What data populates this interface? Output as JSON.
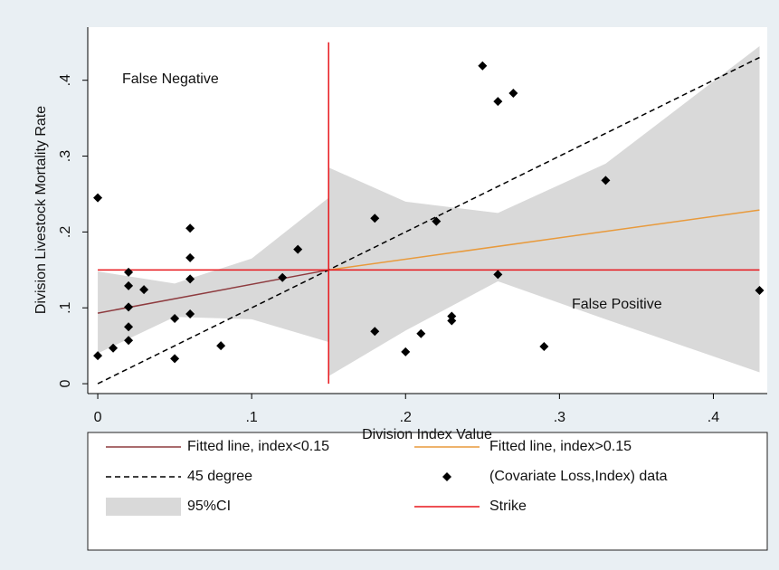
{
  "chart_data": {
    "type": "scatter",
    "x_label": "Division Index Value",
    "y_label": "Division Livestock Mortality Rate",
    "xlim": [
      -0.0065,
      0.435
    ],
    "ylim": [
      -0.013,
      0.47
    ],
    "xticks": [
      0,
      {
        "value": 0.1,
        "label": ".1"
      },
      {
        "value": 0.2,
        "label": ".2"
      },
      {
        "value": 0.3,
        "label": ".3"
      },
      {
        "value": 0.4,
        "label": ".4"
      }
    ],
    "yticks": [
      0,
      {
        "value": 0.1,
        "label": ".1"
      },
      {
        "value": 0.2,
        "label": ".2"
      },
      {
        "value": 0.3,
        "label": ".3"
      },
      {
        "value": 0.4,
        "label": ".4"
      }
    ],
    "grid": false,
    "annotations": [
      "False Negative",
      "False Positive"
    ],
    "series": [
      {
        "name": "Fitted line, index<0.15",
        "style": "solid",
        "color": "#8e3b3f",
        "x": [
          0,
          0.15
        ],
        "values": [
          0.093,
          0.15
        ]
      },
      {
        "name": "Fitted line, index>0.15",
        "style": "solid",
        "color": "#e89a3c",
        "x": [
          0.15,
          0.43
        ],
        "values": [
          0.15,
          0.229
        ]
      },
      {
        "name": "45 degree",
        "style": "dash",
        "color": "#000000",
        "x": [
          0,
          0.43
        ],
        "values": [
          0,
          0.43
        ]
      },
      {
        "name": "(Covariate Loss,Index) data",
        "style": "marker",
        "color": "#000000",
        "x": [
          0,
          0,
          0.01,
          0.02,
          0.02,
          0.02,
          0.02,
          0.02,
          0.03,
          0.05,
          0.05,
          0.06,
          0.06,
          0.06,
          0.06,
          0.08,
          0.12,
          0.13,
          0.18,
          0.18,
          0.2,
          0.21,
          0.22,
          0.23,
          0.23,
          0.25,
          0.26,
          0.27,
          0.26,
          0.29,
          0.33,
          0.43
        ],
        "values": [
          0.245,
          0.037,
          0.047,
          0.147,
          0.129,
          0.101,
          0.075,
          0.057,
          0.124,
          0.086,
          0.033,
          0.205,
          0.166,
          0.138,
          0.092,
          0.05,
          0.14,
          0.177,
          0.218,
          0.069,
          0.042,
          0.066,
          0.214,
          0.089,
          0.083,
          0.419,
          0.372,
          0.383,
          0.144,
          0.049,
          0.268,
          0.123
        ]
      },
      {
        "name": "95%CI",
        "style": "area",
        "color": "#d9d9d9",
        "x": [
          0,
          0.05,
          0.1,
          0.15,
          null,
          0.15,
          0.2,
          0.26,
          0.33,
          0.43
        ],
        "values": [
          0.148,
          0.132,
          0.165,
          0.245,
          null,
          0.285,
          0.24,
          0.225,
          0.29,
          0.445
        ],
        "lower": [
          0.04,
          0.088,
          0.085,
          0.055,
          null,
          0.01,
          0.07,
          0.135,
          0.085,
          0.015
        ]
      },
      {
        "name": "Strike",
        "style": "solid",
        "color": "#e8161b",
        "x": [
          0.15,
          0.15,
          null,
          0,
          0.43
        ],
        "values": [
          0,
          0.45,
          null,
          0.15,
          0.15
        ]
      }
    ]
  }
}
